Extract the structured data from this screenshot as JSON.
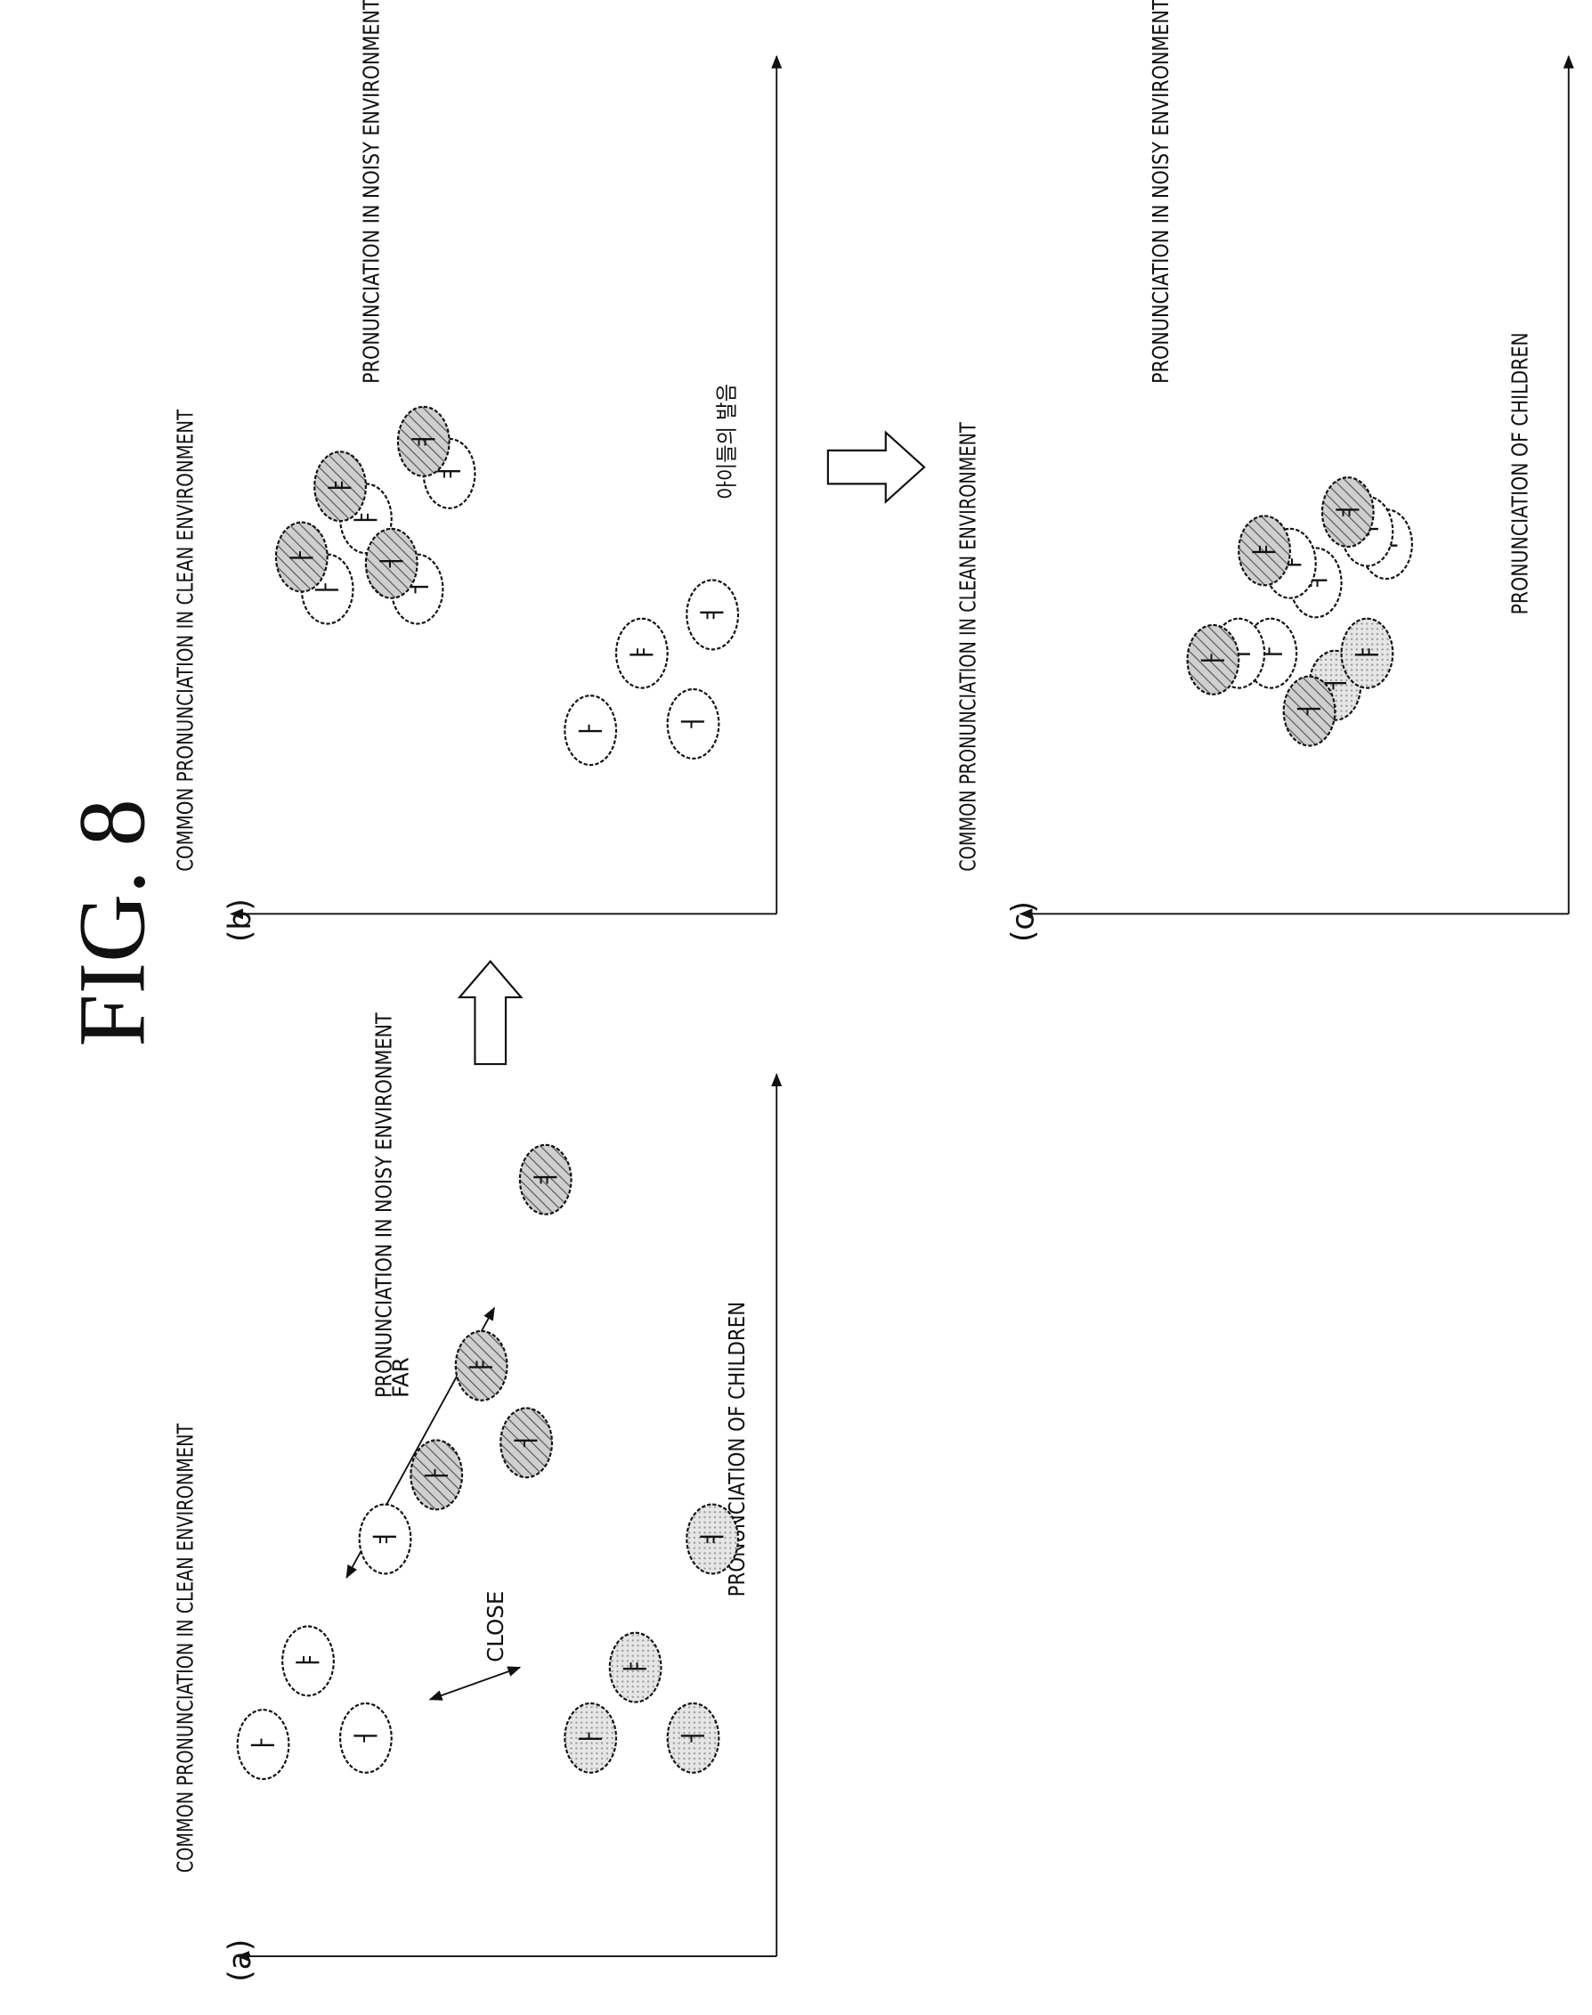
{
  "title": "FIG. 8",
  "panels": [
    {
      "label": "(a)",
      "texts": [
        "COMMON PRONUNCIATION IN CLEAN ENVIRONMENT",
        "PRONUNCIATION IN NOISY ENVIRONMENT",
        "FAR",
        "CLOSE",
        "PRONUNCIATION OF CHILDREN"
      ],
      "ellipses": [
        "ㅏ",
        "ㅑ",
        "ㅓ",
        "ㅕ",
        "ㅏ",
        "ㅑ",
        "ㅓ",
        "ㅕ",
        "ㅏ",
        "ㅑ",
        "ㅓ",
        "ㅕ"
      ]
    },
    {
      "label": "(b)",
      "texts": [
        "COMMON PRONUNCIATION IN CLEAN ENVIRONMENT",
        "PRONUNCIATION IN NOISY ENVIRONMENT",
        "아이들의 발음"
      ],
      "ellipses": [
        "ㅏ",
        "ㅑ",
        "ㅓ",
        "ㅕ",
        "ㅏ",
        "ㅑ",
        "ㅓ",
        "ㅕ",
        "ㅏ",
        "ㅑ",
        "ㅓ",
        "ㅕ"
      ]
    },
    {
      "label": "(c)",
      "texts": [
        "COMMON PRONUNCIATION IN CLEAN ENVIRONMENT",
        "PRONUNCIATION IN NOISY ENVIRONMENT",
        "PRONUNCIATION OF CHILDREN"
      ],
      "ellipses": [
        "ㅓ",
        "ㅑ",
        "ㅕ",
        "ㅏ",
        "ㅏ",
        "ㅑ",
        "ㅑ",
        "ㅕ",
        "ㅏ",
        "ㅑ",
        "ㅕ",
        "ㅓ"
      ]
    }
  ]
}
